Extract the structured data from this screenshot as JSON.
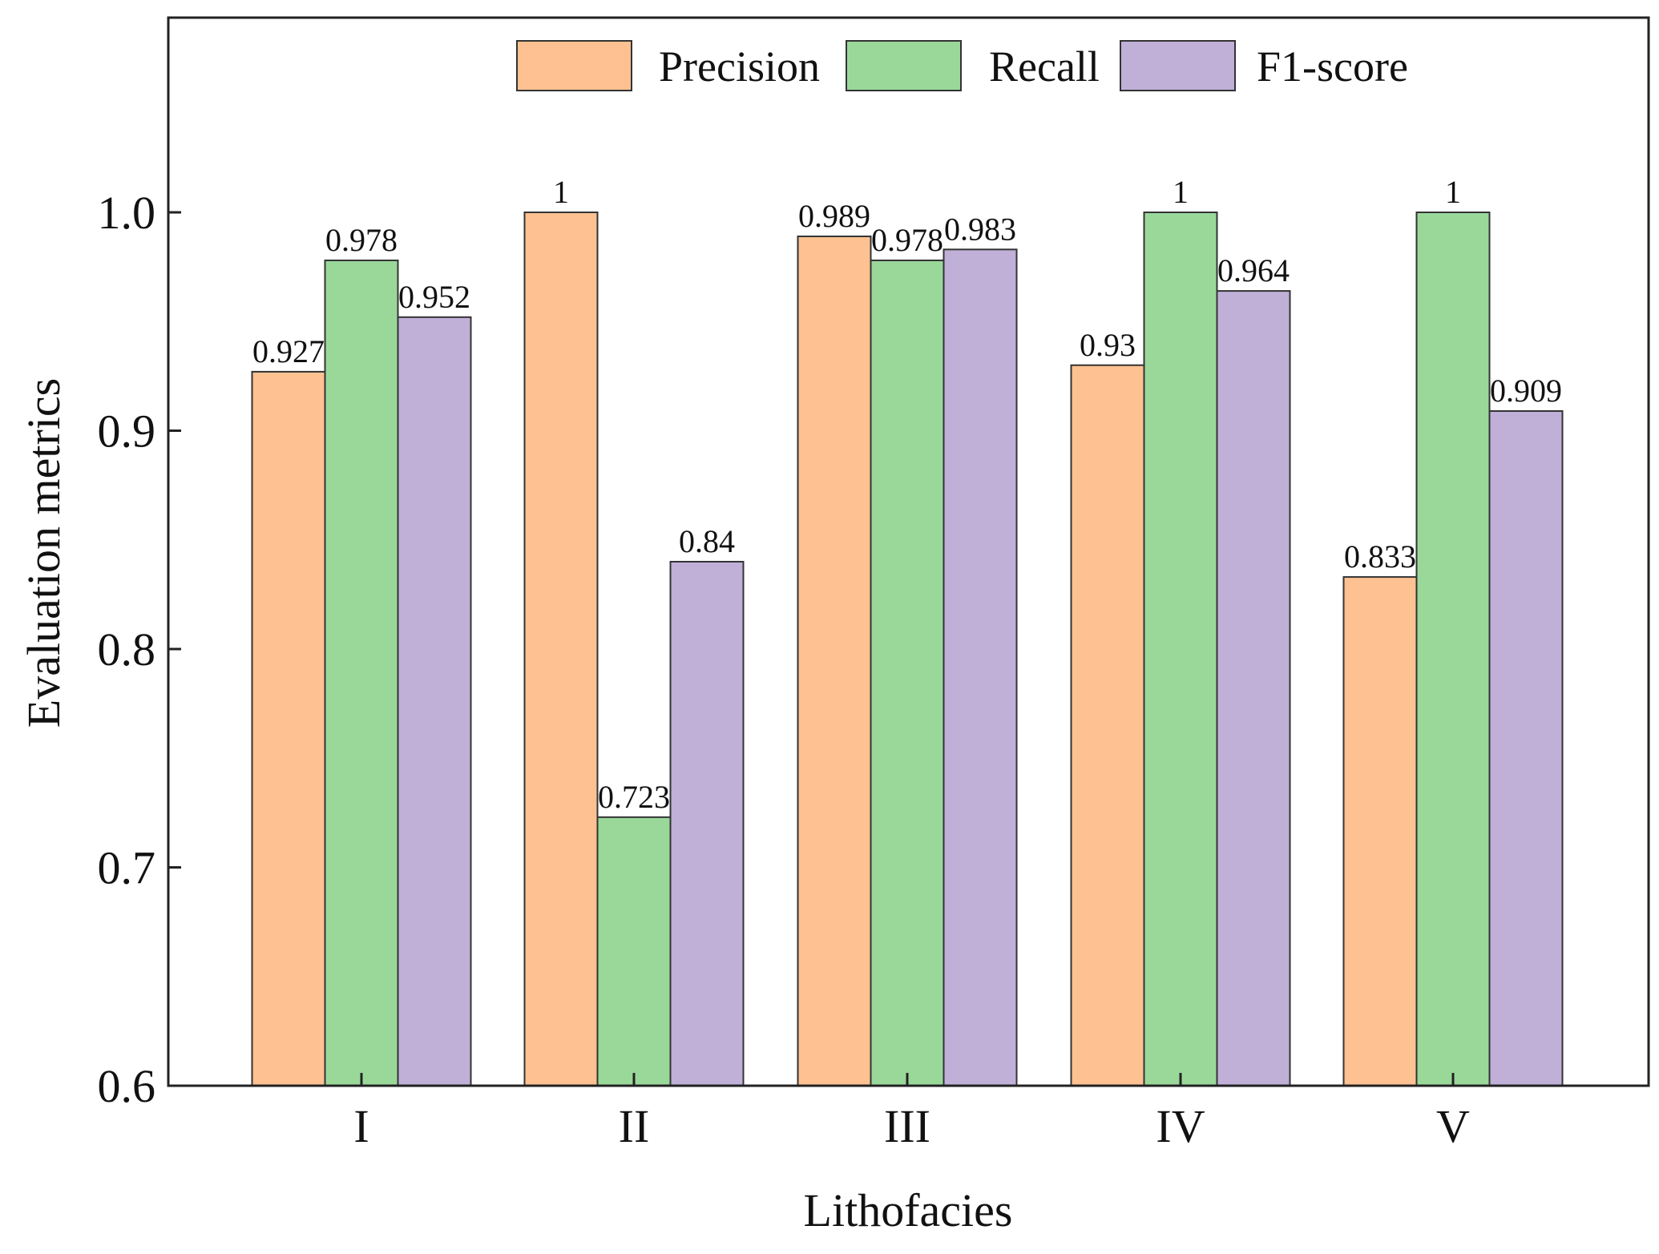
{
  "chart_data": {
    "type": "bar",
    "title": "",
    "xlabel": "Lithofacies",
    "ylabel": "Evaluation metrics",
    "categories": [
      "I",
      "II",
      "III",
      "IV",
      "V"
    ],
    "ylim": [
      0.6,
      1.1
    ],
    "yticks": [
      0.6,
      0.7,
      0.8,
      0.9,
      1.0
    ],
    "ytick_labels": [
      "0.6",
      "0.7",
      "0.8",
      "0.9",
      "1.0"
    ],
    "legend_position": "top-center",
    "grid": false,
    "series": [
      {
        "name": "Precision",
        "color": "#FDC192",
        "values": [
          0.927,
          1,
          0.989,
          0.93,
          0.833
        ],
        "labels": [
          "0.927",
          "1",
          "0.989",
          "0.93",
          "0.833"
        ]
      },
      {
        "name": "Recall",
        "color": "#9AD89A",
        "values": [
          0.978,
          0.723,
          0.978,
          1,
          1
        ],
        "labels": [
          "0.978",
          "0.723",
          "0.978",
          "1",
          "1"
        ]
      },
      {
        "name": "F1-score",
        "color": "#C0B0D8",
        "values": [
          0.952,
          0.84,
          0.983,
          0.964,
          0.909
        ],
        "labels": [
          "0.952",
          "0.84",
          "0.983",
          "0.964",
          "0.909"
        ]
      }
    ]
  }
}
